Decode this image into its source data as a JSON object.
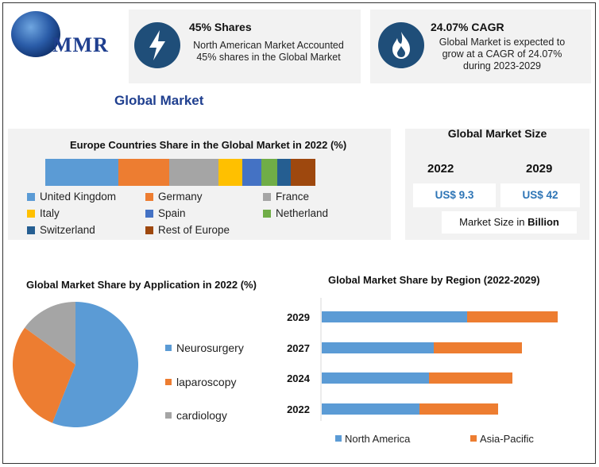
{
  "brand": {
    "logo_text": "MMR"
  },
  "stats": [
    {
      "title": "45% Shares",
      "text_lines": [
        "North American Market Accounted",
        "45% shares in the Global Market"
      ],
      "icon": "lightning-icon"
    },
    {
      "title": "24.07% CAGR",
      "text_lines": [
        "Global Market is expected to",
        "grow at a CAGR of 24.07%",
        "during 2023-2029"
      ],
      "icon": "flame-icon"
    }
  ],
  "section_title": "Global Market",
  "market_size": {
    "title": "Global Market Size",
    "years": [
      "2022",
      "2029"
    ],
    "values": [
      "US$ 9.3",
      "US$ 42"
    ],
    "unit_prefix": "Market Size in ",
    "unit_bold": "Billion"
  },
  "colors": {
    "accent": "#1f3f8f",
    "blue": "#5b9bd5",
    "orange": "#ed7d31",
    "gray": "#a5a5a5",
    "yellow": "#ffc000",
    "mid_blue": "#4472c4",
    "green": "#70ad47",
    "dark_blue": "#255e91",
    "brown": "#9e480e"
  },
  "chart_data": [
    {
      "type": "bar",
      "orientation": "horizontal-stacked",
      "title": "Europe Countries Share in the Global Market in 2022 (%)",
      "series": [
        {
          "name": "United Kingdom",
          "values": [
            27
          ]
        },
        {
          "name": "Germany",
          "values": [
            19
          ]
        },
        {
          "name": "France",
          "values": [
            18
          ]
        },
        {
          "name": "Italy",
          "values": [
            9
          ]
        },
        {
          "name": "Spain",
          "values": [
            7
          ]
        },
        {
          "name": "Netherland",
          "values": [
            6
          ]
        },
        {
          "name": "Switzerland",
          "values": [
            5
          ]
        },
        {
          "name": "Rest of Europe",
          "values": [
            9
          ]
        }
      ],
      "legend_position": "bottom"
    },
    {
      "type": "pie",
      "title": "Global Market Share by Application in 2022 (%)",
      "categories": [
        "Neurosurgery",
        "laparoscopy",
        "cardiology"
      ],
      "values": [
        56,
        29,
        15
      ],
      "legend_position": "right"
    },
    {
      "type": "bar",
      "orientation": "horizontal-stacked",
      "title": "Global Market Share by Region (2022-2029)",
      "categories": [
        "2029",
        "2027",
        "2024",
        "2022"
      ],
      "series": [
        {
          "name": "North America",
          "values": [
            61,
            47,
            45,
            41
          ]
        },
        {
          "name": "Asia-Pacific",
          "values": [
            38,
            37,
            35,
            33
          ]
        }
      ],
      "legend_position": "bottom"
    }
  ]
}
